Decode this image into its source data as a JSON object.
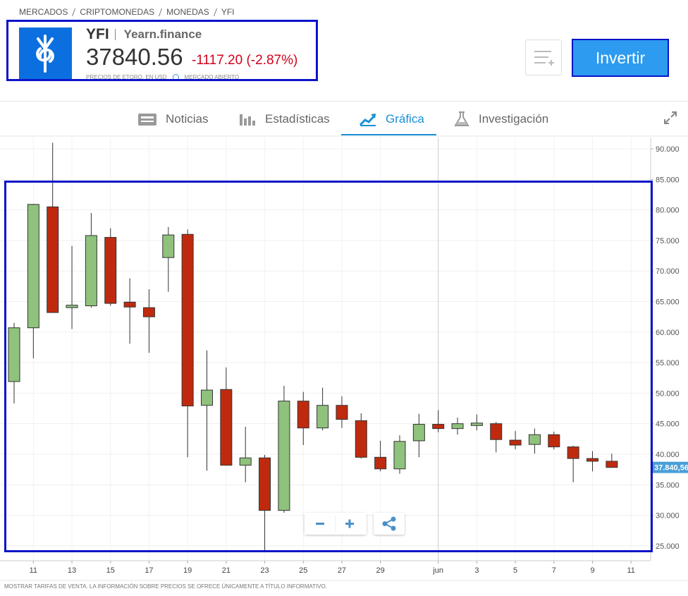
{
  "breadcrumb": [
    "MERCADOS",
    "CRIPTOMONEDAS",
    "MONEDAS",
    "YFI"
  ],
  "header": {
    "symbol": "YFI",
    "name": "Yearn.finance",
    "price": 37840.56,
    "change": "-1117.20 (-2.87%)",
    "note": "PRECIOS DE ETORO, EN USD",
    "status": "MERCADO ABIERTO",
    "button": "Invertir"
  },
  "tabs": [
    "Noticias",
    "Estadísticas",
    "Gráfica",
    "Investigación"
  ],
  "footer": "MOSTRAR TARIFAS DE VENTA. LA INFORMACIÓN SOBRE PRECIOS SE OFRECE ÚNICAMENTE A TÍTULO INFORMATIVO.",
  "chart_data": {
    "type": "candlestick",
    "categories": [
      null,
      "11",
      null,
      "13",
      null,
      "15",
      null,
      "17",
      null,
      "19",
      null,
      "21",
      null,
      "23",
      null,
      "25",
      null,
      "27",
      null,
      "29",
      null,
      null,
      "jun",
      null,
      "3",
      null,
      "5",
      null,
      "7",
      null,
      "9",
      null,
      "11"
    ],
    "open": [
      51900,
      60700,
      80500,
      64000,
      64300,
      75500,
      64900,
      64000,
      72200,
      76000,
      48000,
      50600,
      38200,
      39400,
      30800,
      48700,
      44300,
      48000,
      45500,
      39500,
      37600,
      42200,
      44900,
      44200,
      44700,
      45000,
      42300,
      41600,
      43200,
      41200,
      39300,
      38850,
      null
    ],
    "high": [
      61500,
      81000,
      91000,
      74100,
      79500,
      77000,
      68800,
      67000,
      77200,
      76800,
      57000,
      54200,
      44500,
      39900,
      51200,
      50200,
      50900,
      49500,
      46700,
      42200,
      43100,
      46600,
      47200,
      46000,
      46500,
      45300,
      43800,
      44200,
      43700,
      41400,
      40500,
      40100,
      null
    ],
    "low": [
      48300,
      55700,
      63200,
      60500,
      64000,
      64300,
      58100,
      56600,
      66600,
      39500,
      37300,
      38200,
      35400,
      24100,
      30400,
      41500,
      43900,
      44300,
      39300,
      37200,
      36800,
      39500,
      43600,
      43200,
      43900,
      40300,
      40800,
      40100,
      40800,
      35400,
      37200,
      37840.56,
      null
    ],
    "close": [
      60700,
      80900,
      63200,
      64400,
      75800,
      64700,
      64100,
      62500,
      75900,
      47900,
      50500,
      38200,
      39400,
      30800,
      48700,
      44300,
      48000,
      45700,
      39500,
      37600,
      42100,
      44900,
      44200,
      45000,
      45100,
      42400,
      41500,
      43200,
      41200,
      39300,
      38850,
      37840.56,
      null
    ],
    "up_color": "#8fc27c",
    "down_color": "#bf2a0e",
    "ylim": [
      22560,
      91850
    ],
    "yticks": [
      {
        "value": 25000,
        "label": "25.000"
      },
      {
        "value": 30000,
        "label": "30.000"
      },
      {
        "value": 35000,
        "label": "35.000"
      },
      {
        "value": 40000,
        "label": "40.000"
      },
      {
        "value": 45000,
        "label": "45.000"
      },
      {
        "value": 50000,
        "label": "50.000"
      },
      {
        "value": 55000,
        "label": "55.000"
      },
      {
        "value": 60000,
        "label": "60.000"
      },
      {
        "value": 65000,
        "label": "65.000"
      },
      {
        "value": 70000,
        "label": "70.000"
      },
      {
        "value": 75000,
        "label": "75.000"
      },
      {
        "value": 80000,
        "label": "80.000"
      },
      {
        "value": 85000,
        "label": "85.000"
      },
      {
        "value": 90000,
        "label": "90.000"
      }
    ],
    "last_price": {
      "value": 37840.56,
      "label": "37.840,56"
    },
    "grid": true
  }
}
